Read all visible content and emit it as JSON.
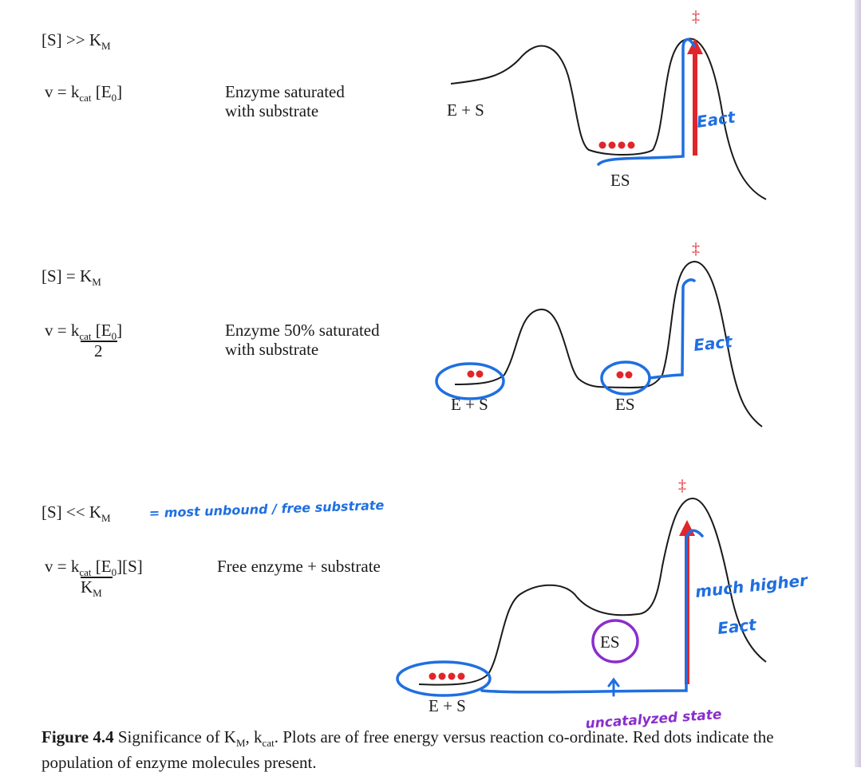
{
  "panels": [
    {
      "condition": "[S] >> K",
      "condition_sub": "M",
      "equation": "v = k",
      "equation_sub": "cat",
      "equation_rest": " [E",
      "equation_sub2": "0",
      "equation_close": "]",
      "description": "Enzyme saturated\nwith substrate",
      "labels": {
        "es_left": "E + S",
        "es": "ES",
        "ts": "‡"
      },
      "annotation": "Eact"
    },
    {
      "condition": "[S] = K",
      "condition_sub": "M",
      "equation": "v = k",
      "equation_sub": "cat",
      "equation_rest": " [E",
      "equation_sub2": "0",
      "equation_close": "]",
      "equation_denominator": "2",
      "description": "Enzyme 50% saturated\nwith substrate",
      "labels": {
        "es_left": "E + S",
        "es": "ES",
        "ts": "‡"
      },
      "annotation": "Eact"
    },
    {
      "condition": "[S] << K",
      "condition_sub": "M",
      "condition_note": "= most unbound / free substrate",
      "equation": "v = k",
      "equation_sub": "cat",
      "equation_rest": " [E",
      "equation_sub2": "0",
      "equation_close": "][S]",
      "equation_denominator": "K",
      "equation_denominator_sub": "M",
      "description": "Free enzyme + substrate",
      "labels": {
        "es_left": "E + S",
        "es": "ES",
        "ts": "‡"
      },
      "annotation_line1": "much higher",
      "annotation_line2": "Eact",
      "annotation_bottom": "uncatalyzed state"
    }
  ],
  "caption": {
    "bold": "Figure 4.4",
    "text": " Significance of K",
    "sub1": "M",
    "text2": ", k",
    "sub2": "cat",
    "text3": ". Plots are of free energy versus reaction co-ordinate. Red dots indicate the population of enzyme molecules present."
  },
  "colors": {
    "red": "#e0262b",
    "blue": "#1f6fe0",
    "purple": "#8a2ecc",
    "ink": "#1a1a1a"
  }
}
